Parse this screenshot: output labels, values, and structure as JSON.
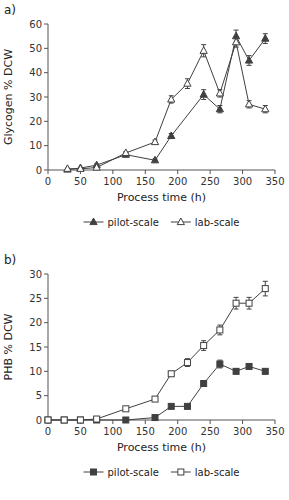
{
  "chart_data": [
    {
      "type": "line",
      "title": "a)",
      "x_label": "Process time (h)",
      "y_label": "Glycogen % DCW",
      "xlim": [
        0,
        350
      ],
      "xticks": [
        0,
        50,
        100,
        150,
        200,
        250,
        300,
        350
      ],
      "ylim": [
        0,
        60
      ],
      "yticks": [
        0,
        10,
        20,
        30,
        40,
        50,
        60
      ],
      "legend": "bottom",
      "series": [
        {
          "name": "pilot-scale",
          "color": "#404040",
          "marker": "triangle",
          "x": [
            30,
            50,
            75,
            120,
            165,
            190,
            240,
            265,
            290,
            310,
            335
          ],
          "values": [
            0.2,
            0.8,
            2.0,
            6.3,
            4.0,
            14.0,
            31.0,
            25.0,
            55.0,
            45.0,
            54.0
          ],
          "errors": [
            0.15,
            0.3,
            0.5,
            0.8,
            0.5,
            1.0,
            2.0,
            1.5,
            2.5,
            2.0,
            2.0
          ]
        },
        {
          "name": "lab-scale",
          "color": "#404040",
          "marker": "triangle-open",
          "x": [
            30,
            50,
            75,
            120,
            165,
            190,
            215,
            240,
            265,
            290,
            310,
            335
          ],
          "values": [
            0.5,
            0.5,
            1.0,
            7.0,
            11.5,
            29.0,
            35.5,
            49.0,
            31.5,
            52.5,
            27.0,
            25.0
          ],
          "errors": [
            0.2,
            0.2,
            0.3,
            0.5,
            0.8,
            1.5,
            2.0,
            2.5,
            1.5,
            2.0,
            1.5,
            1.5
          ]
        }
      ]
    },
    {
      "type": "line",
      "title": "b)",
      "x_label": "Process time (h)",
      "y_label": "PHB % DCW",
      "xlim": [
        0,
        350
      ],
      "xticks": [
        0,
        50,
        100,
        150,
        200,
        250,
        300,
        350
      ],
      "ylim": [
        0,
        30
      ],
      "yticks": [
        0,
        5,
        10,
        15,
        20,
        25,
        30
      ],
      "legend": "bottom",
      "series": [
        {
          "name": "pilot-scale",
          "color": "#404040",
          "marker": "square",
          "x": [
            0,
            25,
            50,
            75,
            120,
            165,
            190,
            215,
            240,
            265,
            290,
            310,
            335
          ],
          "values": [
            0.0,
            0.0,
            0.0,
            0.0,
            0.0,
            0.5,
            2.8,
            2.8,
            7.5,
            11.5,
            10.0,
            11.0,
            10.0
          ],
          "errors": [
            0.0,
            0.0,
            0.0,
            0.0,
            0.0,
            0.1,
            0.3,
            0.3,
            0.5,
            0.8,
            0.5,
            0.6,
            0.5
          ]
        },
        {
          "name": "lab-scale",
          "color": "#404040",
          "marker": "square-open",
          "x": [
            0,
            25,
            50,
            75,
            120,
            165,
            190,
            215,
            240,
            265,
            290,
            310,
            335
          ],
          "values": [
            0.0,
            0.0,
            0.0,
            0.2,
            2.3,
            4.3,
            9.5,
            11.8,
            15.3,
            18.5,
            24.0,
            24.0,
            27.0
          ],
          "errors": [
            0.0,
            0.0,
            0.0,
            0.05,
            0.2,
            0.3,
            0.5,
            0.8,
            1.0,
            1.0,
            1.2,
            1.2,
            1.5
          ]
        }
      ]
    }
  ]
}
